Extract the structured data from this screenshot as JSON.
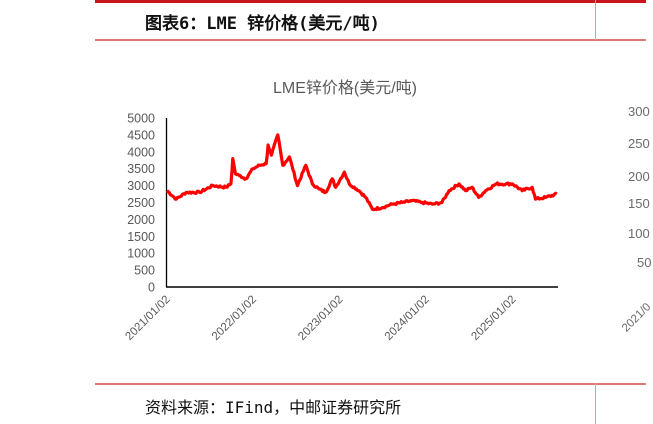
{
  "header": {
    "title": "图表6：LME 锌价格(美元/吨)"
  },
  "footer": {
    "source": "资料来源：IFind，中邮证券研究所"
  },
  "colors": {
    "accent": "#c8161d",
    "series": "#ff0000",
    "axis_text": "#595959",
    "divider": "#e07a7a"
  },
  "chart_data": {
    "type": "line",
    "title": "LME锌价格(美元/吨)",
    "xlabel": "",
    "ylabel": "",
    "ylim": [
      0,
      5000
    ],
    "yticks": [
      0,
      500,
      1000,
      1500,
      2000,
      2500,
      3000,
      3500,
      4000,
      4500,
      5000
    ],
    "xlim": [
      "2021-01-02",
      "2025-07-10"
    ],
    "xticks": [
      "2021/01/02",
      "2022/01/02",
      "2023/01/02",
      "2024/01/02",
      "2025/01/02"
    ],
    "grid": false,
    "legend": "none",
    "series": [
      {
        "color": "#ff0000",
        "points": [
          [
            "2021-01-04",
            2850
          ],
          [
            "2021-02-12",
            2600
          ],
          [
            "2021-03-26",
            2800
          ],
          [
            "2021-05-22",
            2800
          ],
          [
            "2021-07-16",
            3000
          ],
          [
            "2021-09-10",
            2950
          ],
          [
            "2021-10-01",
            3050
          ],
          [
            "2021-10-09",
            3800
          ],
          [
            "2021-10-20",
            3350
          ],
          [
            "2021-11-05",
            3300
          ],
          [
            "2021-12-03",
            3200
          ],
          [
            "2022-01-02",
            3500
          ],
          [
            "2022-01-30",
            3600
          ],
          [
            "2022-02-27",
            3650
          ],
          [
            "2022-03-07",
            4200
          ],
          [
            "2022-03-21",
            3900
          ],
          [
            "2022-04-17",
            4500
          ],
          [
            "2022-05-08",
            3600
          ],
          [
            "2022-06-05",
            3850
          ],
          [
            "2022-07-09",
            3000
          ],
          [
            "2022-08-13",
            3600
          ],
          [
            "2022-09-10",
            3050
          ],
          [
            "2022-10-08",
            2900
          ],
          [
            "2022-11-05",
            2800
          ],
          [
            "2022-12-03",
            3200
          ],
          [
            "2022-12-17",
            2950
          ],
          [
            "2023-01-23",
            3400
          ],
          [
            "2023-02-13",
            3050
          ],
          [
            "2023-03-26",
            2850
          ],
          [
            "2023-04-23",
            2650
          ],
          [
            "2023-05-22",
            2300
          ],
          [
            "2023-07-02",
            2350
          ],
          [
            "2023-08-13",
            2450
          ],
          [
            "2023-09-25",
            2500
          ],
          [
            "2023-11-05",
            2550
          ],
          [
            "2023-12-18",
            2500
          ],
          [
            "2024-01-30",
            2450
          ],
          [
            "2024-03-10",
            2500
          ],
          [
            "2024-04-09",
            2850
          ],
          [
            "2024-05-21",
            3050
          ],
          [
            "2024-06-18",
            2850
          ],
          [
            "2024-07-15",
            2950
          ],
          [
            "2024-08-12",
            2650
          ],
          [
            "2024-09-10",
            2850
          ],
          [
            "2024-10-25",
            3050
          ],
          [
            "2024-12-05",
            3050
          ],
          [
            "2025-01-02",
            3050
          ],
          [
            "2025-02-12",
            2850
          ],
          [
            "2025-03-26",
            2950
          ],
          [
            "2025-04-09",
            2600
          ],
          [
            "2025-05-22",
            2650
          ],
          [
            "2025-07-08",
            2750
          ]
        ]
      }
    ]
  },
  "right_panel_fragment": {
    "yticks": [
      "300",
      "250",
      "200",
      "150",
      "100",
      "50"
    ],
    "xtick": "2021/0"
  }
}
